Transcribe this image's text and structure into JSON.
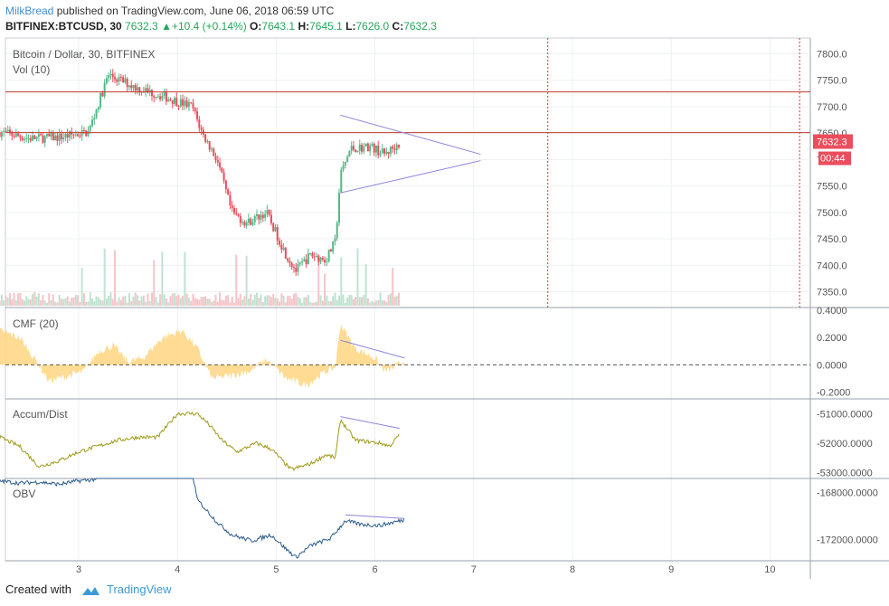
{
  "header": {
    "user": "MilkBread",
    "published": " published on TradingView.com, June 06, 2018 06:59 UTC",
    "symbol": "BITFINEX:BTCUSD, 30",
    "last": "7632.3",
    "change": "+10.4 (+0.14%)",
    "o_label": "O:",
    "o_val": "7643.1",
    "h_label": "H:",
    "h_val": "7645.1",
    "l_label": "L:",
    "l_val": "7626.0",
    "c_label": "C:",
    "c_val": "7632.3"
  },
  "footer": {
    "created": "Created with",
    "brand": "TradingView"
  },
  "colors": {
    "up": "#53b987",
    "down": "#eb4d5c",
    "cmf": "#ffd580",
    "ad": "#9e9a1b",
    "obv": "#2c5d8f",
    "trend": "#8d84d9",
    "level": "#c0392b",
    "tag": "#eb4d5c"
  },
  "chart_data": [
    {
      "type": "candlestick",
      "title": "Bitcoin / Dollar, 30, BITFINEX",
      "volume_label": "Vol (10)",
      "x": [
        "3",
        "4",
        "5",
        "6",
        "7",
        "8",
        "9",
        "10"
      ],
      "ylim": [
        7320,
        7830
      ],
      "yticks": [
        "7800.0",
        "7750.0",
        "7700.0",
        "7650.0",
        "7600.0",
        "7550.0",
        "7500.0",
        "7450.0",
        "7400.0",
        "7350.0"
      ],
      "last_price_tag": "7632.3",
      "countdown_tag": "00:44",
      "horizontal_levels": [
        7728,
        7651
      ],
      "vertical_markers_day": [
        7.75,
        10.3
      ],
      "trendlines": [
        [
          [
            5.65,
            7684
          ],
          [
            7.07,
            7610
          ]
        ],
        [
          [
            5.65,
            7537
          ],
          [
            7.07,
            7598
          ]
        ]
      ],
      "close_path": [
        [
          2.2,
          7652
        ],
        [
          2.5,
          7640
        ],
        [
          2.8,
          7642
        ],
        [
          3.1,
          7652
        ],
        [
          3.3,
          7760
        ],
        [
          3.6,
          7735
        ],
        [
          3.85,
          7720
        ],
        [
          4.0,
          7710
        ],
        [
          4.15,
          7700
        ],
        [
          4.25,
          7650
        ],
        [
          4.4,
          7600
        ],
        [
          4.55,
          7500
        ],
        [
          4.7,
          7480
        ],
        [
          4.9,
          7500
        ],
        [
          5.1,
          7420
        ],
        [
          5.2,
          7390
        ],
        [
          5.35,
          7420
        ],
        [
          5.5,
          7410
        ],
        [
          5.6,
          7445
        ],
        [
          5.65,
          7570
        ],
        [
          5.75,
          7620
        ],
        [
          5.95,
          7625
        ],
        [
          6.1,
          7610
        ],
        [
          6.25,
          7632
        ]
      ],
      "volume_range": [
        0,
        100
      ]
    },
    {
      "type": "area",
      "title": "CMF (20)",
      "ylim": [
        -0.25,
        0.42
      ],
      "yticks": [
        "0.4000",
        "0.2000",
        "0.0000",
        "-0.2000"
      ],
      "path": [
        [
          2.2,
          0.25
        ],
        [
          2.4,
          0.2
        ],
        [
          2.55,
          0.05
        ],
        [
          2.7,
          -0.12
        ],
        [
          2.9,
          -0.08
        ],
        [
          3.05,
          -0.05
        ],
        [
          3.2,
          0.1
        ],
        [
          3.35,
          0.14
        ],
        [
          3.5,
          0.02
        ],
        [
          3.65,
          0.05
        ],
        [
          3.85,
          0.2
        ],
        [
          4.05,
          0.25
        ],
        [
          4.2,
          0.12
        ],
        [
          4.35,
          -0.1
        ],
        [
          4.55,
          -0.08
        ],
        [
          4.75,
          -0.04
        ],
        [
          4.9,
          0.04
        ],
        [
          5.1,
          -0.1
        ],
        [
          5.3,
          -0.15
        ],
        [
          5.5,
          -0.05
        ],
        [
          5.6,
          -0.02
        ],
        [
          5.65,
          0.3
        ],
        [
          5.8,
          0.12
        ],
        [
          6.0,
          0.05
        ],
        [
          6.1,
          -0.05
        ],
        [
          6.2,
          -0.02
        ],
        [
          6.3,
          0.04
        ]
      ],
      "trendline": [
        [
          5.65,
          0.18
        ],
        [
          6.3,
          0.05
        ]
      ]
    },
    {
      "type": "line",
      "title": "Accum/Dist",
      "ylim": [
        -53200,
        -50500
      ],
      "yticks": [
        "-51000.0000",
        "-52000.0000",
        "-53000.0000"
      ],
      "path": [
        [
          2.2,
          -51800
        ],
        [
          2.4,
          -52100
        ],
        [
          2.6,
          -52800
        ],
        [
          2.8,
          -52600
        ],
        [
          3.0,
          -52300
        ],
        [
          3.2,
          -52100
        ],
        [
          3.4,
          -51900
        ],
        [
          3.6,
          -51800
        ],
        [
          3.8,
          -51800
        ],
        [
          3.95,
          -51200
        ],
        [
          4.0,
          -51000
        ],
        [
          4.2,
          -51000
        ],
        [
          4.3,
          -51300
        ],
        [
          4.45,
          -51900
        ],
        [
          4.6,
          -52300
        ],
        [
          4.8,
          -52000
        ],
        [
          4.95,
          -52200
        ],
        [
          5.15,
          -52900
        ],
        [
          5.35,
          -52700
        ],
        [
          5.5,
          -52400
        ],
        [
          5.6,
          -52500
        ],
        [
          5.65,
          -51200
        ],
        [
          5.8,
          -51900
        ],
        [
          6.05,
          -52000
        ],
        [
          6.15,
          -52100
        ],
        [
          6.25,
          -51700
        ]
      ],
      "trendline": [
        [
          5.65,
          -51100
        ],
        [
          6.25,
          -51500
        ]
      ]
    },
    {
      "type": "line",
      "title": "OBV",
      "ylim": [
        -173800,
        -166800
      ],
      "yticks": [
        "-168000.0000",
        "-172000.0000"
      ],
      "path": [
        [
          2.2,
          -167000
        ],
        [
          2.4,
          -167200
        ],
        [
          2.6,
          -167100
        ],
        [
          2.8,
          -167300
        ],
        [
          3.0,
          -167000
        ],
        [
          3.15,
          -166900
        ],
        [
          3.3,
          -166200
        ],
        [
          4.15,
          -166200
        ],
        [
          4.2,
          -168600
        ],
        [
          4.4,
          -170500
        ],
        [
          4.55,
          -171600
        ],
        [
          4.75,
          -172100
        ],
        [
          4.95,
          -171600
        ],
        [
          5.1,
          -172800
        ],
        [
          5.2,
          -173500
        ],
        [
          5.35,
          -172500
        ],
        [
          5.55,
          -171900
        ],
        [
          5.7,
          -170400
        ],
        [
          5.85,
          -170700
        ],
        [
          6.05,
          -170800
        ],
        [
          6.2,
          -170500
        ],
        [
          6.3,
          -170300
        ]
      ],
      "trendline": [
        [
          5.7,
          -169900
        ],
        [
          6.3,
          -170200
        ]
      ]
    }
  ]
}
